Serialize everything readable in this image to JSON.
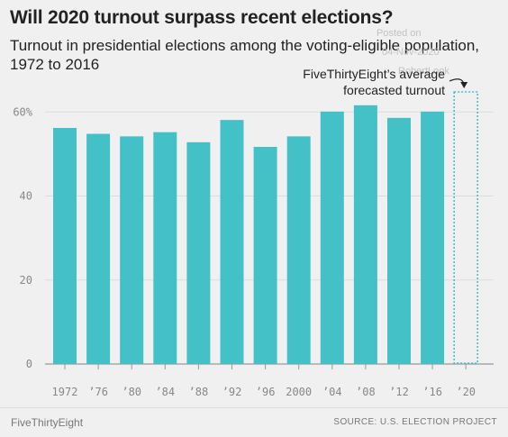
{
  "header": {
    "title": "Will 2020 turnout surpass recent elections?",
    "subtitle": "Turnout in presidential elections among the voting-eligible population, 1972 to 2016"
  },
  "watermark": {
    "posted_on": "Posted on",
    "date": "04-Nov-2020",
    "author": "RobertLook"
  },
  "annotation": {
    "line1": "FiveThirtyEight’s average",
    "line2": "forecasted turnout"
  },
  "footer": {
    "brand": "FiveThirtyEight",
    "source": "SOURCE: U.S. ELECTION PROJECT"
  },
  "colors": {
    "bar": "#43c1c7",
    "forecast_outline": "#43c1c7",
    "grid": "#dcdcdc",
    "axis": "#999999",
    "tick_text": "#888888"
  },
  "chart_data": {
    "type": "bar",
    "categories": [
      "1972",
      "’76",
      "’80",
      "’84",
      "’88",
      "’92",
      "’96",
      "2000",
      "’04",
      "’08",
      "’12",
      "’16",
      "’20"
    ],
    "values": [
      56.2,
      54.8,
      54.2,
      55.2,
      52.8,
      58.1,
      51.7,
      54.2,
      60.1,
      61.6,
      58.6,
      60.1,
      65
    ],
    "forecast_index": 12,
    "ylim": [
      0,
      65
    ],
    "yticks": [
      0,
      20,
      40,
      60
    ],
    "ytick_labels": [
      "0",
      "20",
      "40",
      "60%"
    ],
    "grid": true,
    "xlabel": "",
    "ylabel": ""
  }
}
